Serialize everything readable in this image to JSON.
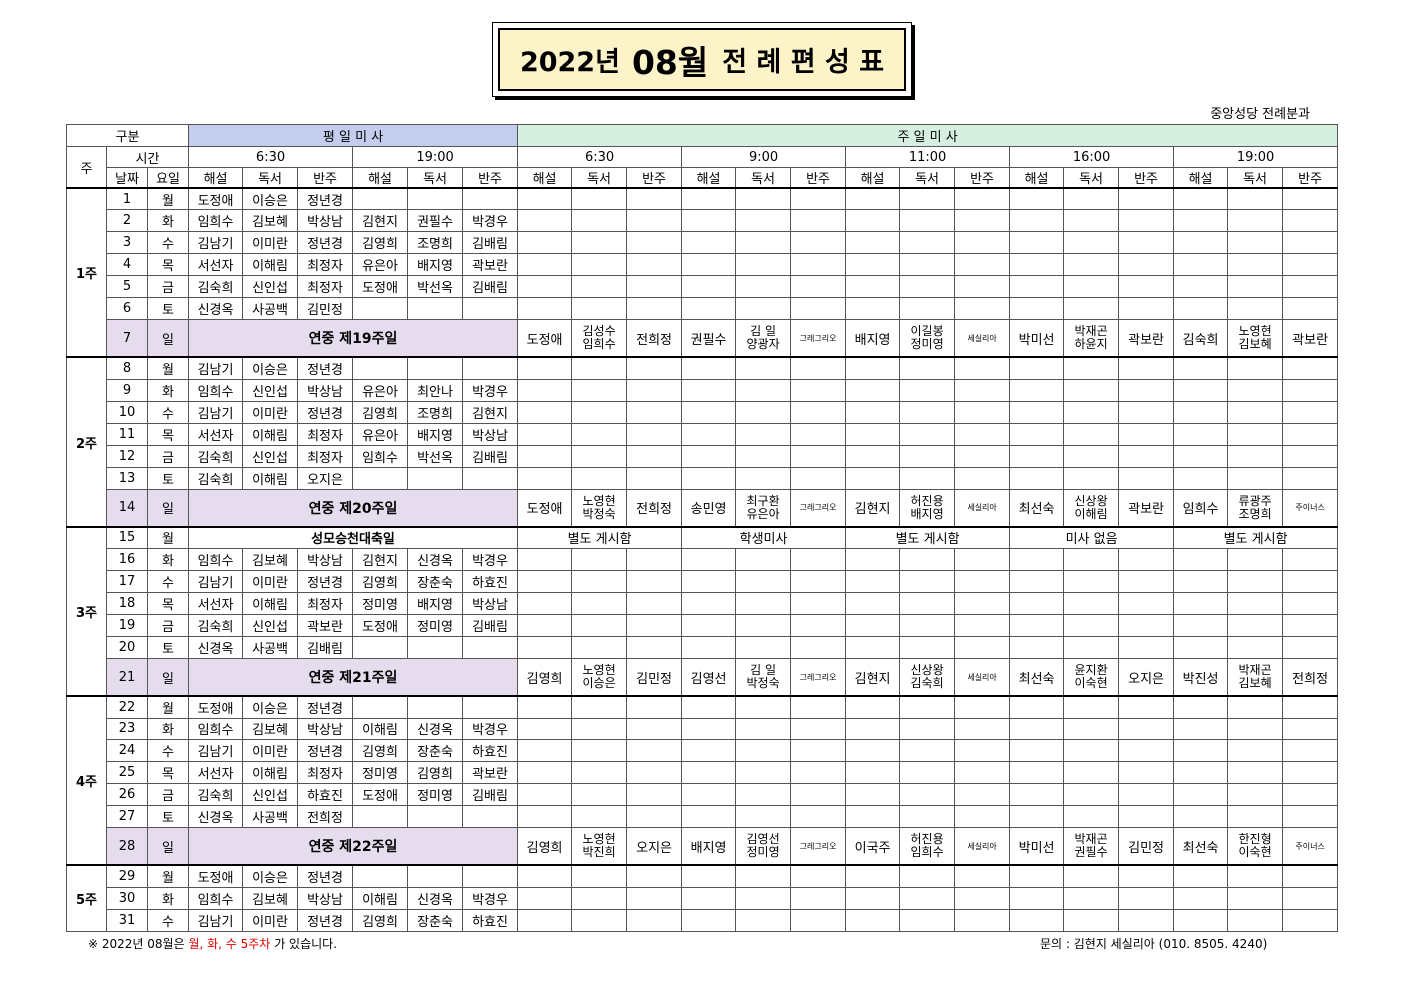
{
  "title": {
    "prefix": "2022년",
    "month": "08월",
    "suffix": "전 례 편 성 표"
  },
  "parish": "중앙성당 전례분과",
  "header": {
    "category": "구분",
    "weekday_mass": "평 일 미 사",
    "sunday_mass": "주 일 미 사",
    "week": "주",
    "time": "시간",
    "date": "날짜",
    "day": "요일",
    "weekday_times": [
      "6:30",
      "19:00"
    ],
    "sunday_times": [
      "6:30",
      "9:00",
      "11:00",
      "16:00",
      "19:00"
    ],
    "roles": [
      "해설",
      "독서",
      "반주"
    ]
  },
  "weeks": [
    {
      "label": "1주",
      "rows": [
        {
          "date": "1",
          "day": "월",
          "wd": [
            "도정애",
            "이승은",
            "정년경",
            "",
            "",
            ""
          ]
        },
        {
          "date": "2",
          "day": "화",
          "wd": [
            "임희수",
            "김보혜",
            "박상남",
            "김현지",
            "권필수",
            "박경우"
          ]
        },
        {
          "date": "3",
          "day": "수",
          "wd": [
            "김남기",
            "이미란",
            "정년경",
            "김영희",
            "조명희",
            "김배림"
          ]
        },
        {
          "date": "4",
          "day": "목",
          "wd": [
            "서선자",
            "이해림",
            "최정자",
            "유은아",
            "배지영",
            "곽보란"
          ]
        },
        {
          "date": "5",
          "day": "금",
          "wd": [
            "김숙희",
            "신인섭",
            "최정자",
            "도정애",
            "박선옥",
            "김배림"
          ]
        },
        {
          "date": "6",
          "day": "토",
          "wd": [
            "신경옥",
            "사공백",
            "김민정",
            "",
            "",
            ""
          ]
        },
        {
          "date": "7",
          "day": "일",
          "sunday": "연중 제19주일",
          "su": [
            [
              "도정애"
            ],
            [
              "김성수",
              "임희수"
            ],
            [
              "전희정"
            ],
            [
              "권필수"
            ],
            [
              "김 일",
              "양광자"
            ],
            [
              "그레그리오"
            ],
            [
              "배지영"
            ],
            [
              "이길봉",
              "정미영"
            ],
            [
              "세실리아"
            ],
            [
              "박미선"
            ],
            [
              "박재곤",
              "하윤지"
            ],
            [
              "곽보란"
            ],
            [
              "김숙희"
            ],
            [
              "노영현",
              "김보혜"
            ],
            [
              "곽보란"
            ]
          ]
        }
      ]
    },
    {
      "label": "2주",
      "rows": [
        {
          "date": "8",
          "day": "월",
          "wd": [
            "김남기",
            "이승은",
            "정년경",
            "",
            "",
            ""
          ]
        },
        {
          "date": "9",
          "day": "화",
          "wd": [
            "임희수",
            "신인섭",
            "박상남",
            "유은아",
            "최안나",
            "박경우"
          ]
        },
        {
          "date": "10",
          "day": "수",
          "wd": [
            "김남기",
            "이미란",
            "정년경",
            "김영희",
            "조명희",
            "김현지"
          ]
        },
        {
          "date": "11",
          "day": "목",
          "wd": [
            "서선자",
            "이해림",
            "최정자",
            "유은아",
            "배지영",
            "박상남"
          ]
        },
        {
          "date": "12",
          "day": "금",
          "wd": [
            "김숙희",
            "신인섭",
            "최정자",
            "임희수",
            "박선옥",
            "김배림"
          ]
        },
        {
          "date": "13",
          "day": "토",
          "wd": [
            "김숙희",
            "이해림",
            "오지은",
            "",
            "",
            ""
          ]
        },
        {
          "date": "14",
          "day": "일",
          "sunday": "연중 제20주일",
          "su": [
            [
              "도정애"
            ],
            [
              "노영현",
              "박정숙"
            ],
            [
              "전희정"
            ],
            [
              "송민영"
            ],
            [
              "최구환",
              "유은아"
            ],
            [
              "그레그리오"
            ],
            [
              "김현지"
            ],
            [
              "허진용",
              "배지영"
            ],
            [
              "세실리아"
            ],
            [
              "최선숙"
            ],
            [
              "신상왕",
              "이해림"
            ],
            [
              "곽보란"
            ],
            [
              "임희수"
            ],
            [
              "류광주",
              "조명희"
            ],
            [
              "주이너스"
            ]
          ]
        }
      ]
    },
    {
      "label": "3주",
      "rows": [
        {
          "date": "15",
          "day": "월",
          "feast": "성모승천대축일",
          "notes": [
            "별도 게시함",
            "학생미사",
            "별도 게시함",
            "미사 없음",
            "별도 게시함"
          ]
        },
        {
          "date": "16",
          "day": "화",
          "wd": [
            "임희수",
            "김보혜",
            "박상남",
            "김현지",
            "신경옥",
            "박경우"
          ]
        },
        {
          "date": "17",
          "day": "수",
          "wd": [
            "김남기",
            "이미란",
            "정년경",
            "김영희",
            "장춘숙",
            "하효진"
          ]
        },
        {
          "date": "18",
          "day": "목",
          "wd": [
            "서선자",
            "이해림",
            "최정자",
            "정미영",
            "배지영",
            "박상남"
          ]
        },
        {
          "date": "19",
          "day": "금",
          "wd": [
            "김숙희",
            "신인섭",
            "곽보란",
            "도정애",
            "정미영",
            "김배림"
          ]
        },
        {
          "date": "20",
          "day": "토",
          "wd": [
            "신경옥",
            "사공백",
            "김배림",
            "",
            "",
            ""
          ]
        },
        {
          "date": "21",
          "day": "일",
          "sunday": "연중 제21주일",
          "su": [
            [
              "김영희"
            ],
            [
              "노영현",
              "이승은"
            ],
            [
              "김민정"
            ],
            [
              "김영선"
            ],
            [
              "김 일",
              "박정숙"
            ],
            [
              "그레그리오"
            ],
            [
              "김현지"
            ],
            [
              "신상왕",
              "김숙희"
            ],
            [
              "세실리아"
            ],
            [
              "최선숙"
            ],
            [
              "윤지환",
              "이숙현"
            ],
            [
              "오지은"
            ],
            [
              "박진성"
            ],
            [
              "박재곤",
              "김보혜"
            ],
            [
              "전희정"
            ]
          ]
        }
      ]
    },
    {
      "label": "4주",
      "rows": [
        {
          "date": "22",
          "day": "월",
          "wd": [
            "도정애",
            "이승은",
            "정년경",
            "",
            "",
            ""
          ]
        },
        {
          "date": "23",
          "day": "화",
          "wd": [
            "임희수",
            "김보혜",
            "박상남",
            "이해림",
            "신경옥",
            "박경우"
          ]
        },
        {
          "date": "24",
          "day": "수",
          "wd": [
            "김남기",
            "이미란",
            "정년경",
            "김영희",
            "장춘숙",
            "하효진"
          ]
        },
        {
          "date": "25",
          "day": "목",
          "wd": [
            "서선자",
            "이해림",
            "최정자",
            "정미영",
            "김영희",
            "곽보란"
          ]
        },
        {
          "date": "26",
          "day": "금",
          "wd": [
            "김숙희",
            "신인섭",
            "하효진",
            "도정애",
            "정미영",
            "김배림"
          ]
        },
        {
          "date": "27",
          "day": "토",
          "wd": [
            "신경옥",
            "사공백",
            "전희정",
            "",
            "",
            ""
          ]
        },
        {
          "date": "28",
          "day": "일",
          "sunday": "연중 제22주일",
          "su": [
            [
              "김영희"
            ],
            [
              "노영현",
              "박진희"
            ],
            [
              "오지은"
            ],
            [
              "배지영"
            ],
            [
              "김영선",
              "정미영"
            ],
            [
              "그레그리오"
            ],
            [
              "이국주"
            ],
            [
              "허진용",
              "임희수"
            ],
            [
              "세실리아"
            ],
            [
              "박미선"
            ],
            [
              "박재곤",
              "권필수"
            ],
            [
              "김민정"
            ],
            [
              "최선숙"
            ],
            [
              "한진형",
              "이숙현"
            ],
            [
              "주이너스"
            ]
          ]
        }
      ]
    },
    {
      "label": "5주",
      "rows": [
        {
          "date": "29",
          "day": "월",
          "wd": [
            "도정애",
            "이승은",
            "정년경",
            "",
            "",
            ""
          ]
        },
        {
          "date": "30",
          "day": "화",
          "wd": [
            "임희수",
            "김보혜",
            "박상남",
            "이해림",
            "신경옥",
            "박경우"
          ]
        },
        {
          "date": "31",
          "day": "수",
          "wd": [
            "김남기",
            "이미란",
            "정년경",
            "김영희",
            "장춘숙",
            "하효진"
          ]
        }
      ]
    }
  ],
  "footer": {
    "note_prefix": "※  2022년  08월은 ",
    "note_highlight": "월, 화, 수 5주차",
    "note_suffix": "가  있습니다.",
    "contact": "문의 :  김현지  세실리아  (010. 8505. 4240)"
  }
}
